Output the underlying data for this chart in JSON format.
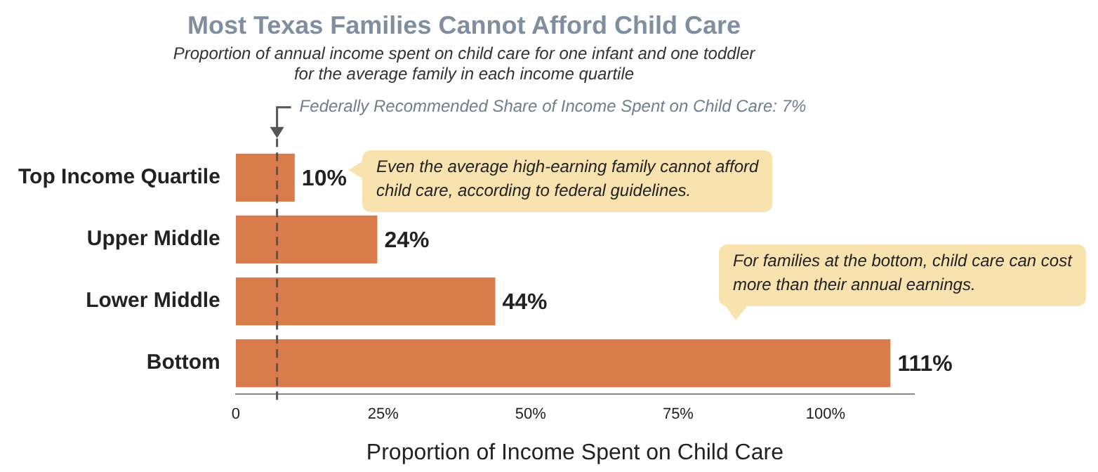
{
  "chart_data": {
    "type": "bar",
    "orientation": "horizontal",
    "title": "Most Texas Families Cannot Afford Child Care",
    "subtitle": "Proportion of annual income spent on child care for one infant and one toddler\nfor the average family in each income quartile",
    "xlabel": "Proportion of Income Spent on Child Care",
    "categories": [
      "Top Income Quartile",
      "Upper Middle",
      "Lower Middle",
      "Bottom"
    ],
    "values": [
      10,
      24,
      44,
      111
    ],
    "color": "#d97b4a",
    "value_labels": [
      "10%",
      "24%",
      "44%",
      "111%"
    ],
    "xlim": [
      0,
      115
    ],
    "xticks": [
      0,
      {
        "value": 25,
        "label": "25%"
      },
      {
        "value": 50,
        "label": "50%"
      },
      {
        "value": 75,
        "label": "75%"
      },
      {
        "value": 100,
        "label": "100%"
      }
    ],
    "grid": false,
    "legend": false,
    "ref_lines": [
      {
        "axis": "x",
        "value": 7,
        "label": "Federally Recommended Share of Income Spent on Child Care: 7%",
        "color": "#555555",
        "line_style": "dashed"
      }
    ],
    "annotations": [
      "Even the average high-earning family cannot afford child care, according to federal guidelines.",
      "For families at the bottom, child care can cost more than their annual earnings."
    ]
  }
}
